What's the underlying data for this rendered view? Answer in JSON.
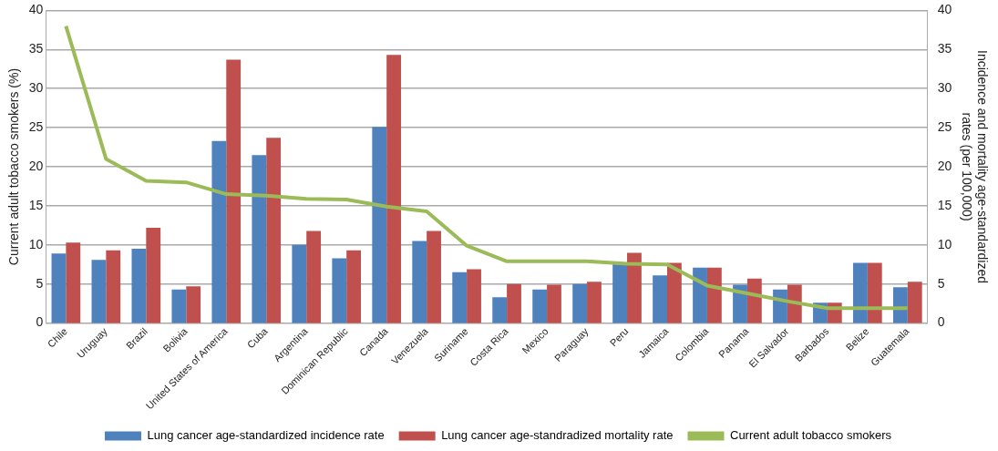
{
  "chart_data": {
    "type": "bar",
    "ylabel": "Current adult tobacco smokers (%)",
    "y2label": "Incidence and mortality age-standardized rates (per 100,000)",
    "categories": [
      "Chile",
      "Uruguay",
      "Brazil",
      "Bolivia",
      "United States of America",
      "Cuba",
      "Argentina",
      "Dominican Republic",
      "Canada",
      "Venezuela",
      "Suriname",
      "Costa Rica",
      "Mexico",
      "Paraguay",
      "Peru",
      "Jamaica",
      "Colombia",
      "Panama",
      "El Salvador",
      "Barbados",
      "Belize",
      "Guatemala"
    ],
    "series": [
      {
        "name": "Lung cancer age-standardized incidence rate",
        "color": "#4f81bd",
        "axis": "y2",
        "values": [
          8.9,
          8.1,
          9.5,
          4.3,
          23.3,
          21.5,
          10.0,
          8.3,
          25.1,
          10.5,
          6.5,
          3.3,
          4.3,
          5.0,
          7.7,
          6.1,
          7.1,
          4.9,
          4.3,
          2.6,
          7.7,
          4.6
        ]
      },
      {
        "name": "Lung cancer age-standradized mortality rate",
        "color": "#c0504d",
        "axis": "y2",
        "values": [
          10.3,
          9.3,
          12.2,
          4.7,
          33.7,
          23.7,
          11.8,
          9.3,
          34.3,
          11.8,
          6.9,
          5.0,
          4.9,
          5.3,
          9.0,
          7.7,
          7.1,
          5.7,
          4.9,
          2.6,
          7.7,
          5.3
        ]
      },
      {
        "name": "Current adult tobacco smokers",
        "type": "line",
        "color": "#9bbb59",
        "values": [
          38,
          21,
          18.2,
          18,
          16.5,
          16.3,
          15.9,
          15.8,
          14.9,
          14.3,
          9.9,
          7.9,
          7.9,
          7.9,
          7.6,
          7.5,
          4.8,
          3.8,
          2.8,
          1.9,
          1.9,
          1.9
        ]
      }
    ],
    "ylim": [
      0,
      40
    ],
    "yticks": [
      0,
      5,
      10,
      15,
      20,
      25,
      30,
      35,
      40
    ],
    "y2lim": [
      0,
      40
    ],
    "y2ticks": [
      0,
      5,
      10,
      15,
      20,
      25,
      30,
      35,
      40
    ],
    "grid": "y",
    "legend": "bottom",
    "marker": "none"
  }
}
